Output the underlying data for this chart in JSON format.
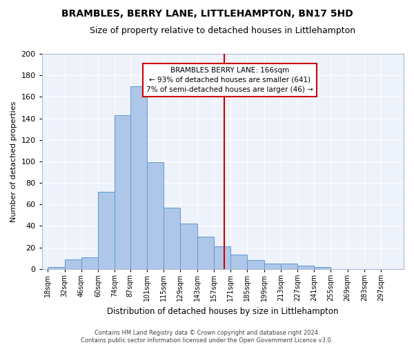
{
  "title": "BRAMBLES, BERRY LANE, LITTLEHAMPTON, BN17 5HD",
  "subtitle": "Size of property relative to detached houses in Littlehampton",
  "xlabel": "Distribution of detached houses by size in Littlehampton",
  "ylabel": "Number of detached properties",
  "footer_line1": "Contains HM Land Registry data © Crown copyright and database right 2024.",
  "footer_line2": "Contains public sector information licensed under the Open Government Licence v3.0.",
  "bin_labels": [
    "18sqm",
    "32sqm",
    "46sqm",
    "60sqm",
    "74sqm",
    "87sqm",
    "101sqm",
    "115sqm",
    "129sqm",
    "143sqm",
    "157sqm",
    "171sqm",
    "185sqm",
    "199sqm",
    "213sqm",
    "227sqm",
    "241sqm",
    "255sqm",
    "269sqm",
    "283sqm",
    "297sqm"
  ],
  "bin_edges": [
    18,
    32,
    46,
    60,
    74,
    87,
    101,
    115,
    129,
    143,
    157,
    171,
    185,
    199,
    213,
    227,
    241,
    255,
    269,
    283,
    297,
    311
  ],
  "heights": [
    2,
    9,
    11,
    72,
    143,
    170,
    99,
    57,
    42,
    30,
    21,
    13,
    8,
    5,
    5,
    3,
    2,
    0,
    0,
    0,
    0
  ],
  "bar_color": "#aec6e8",
  "bar_edge_color": "#5b9bd5",
  "vline_x": 166,
  "vline_color": "#cc0000",
  "annotation_text": "BRAMBLES BERRY LANE: 166sqm\n← 93% of detached houses are smaller (641)\n7% of semi-detached houses are larger (46) →",
  "annotation_box_color": "#cc0000",
  "ylim": [
    0,
    200
  ],
  "background_color": "#eef2fb",
  "grid_color": "#ffffff",
  "title_fontsize": 10,
  "subtitle_fontsize": 9,
  "ylabel_fontsize": 8,
  "xlabel_fontsize": 8.5,
  "tick_fontsize": 7,
  "ytick_fontsize": 8,
  "footer_fontsize": 6
}
